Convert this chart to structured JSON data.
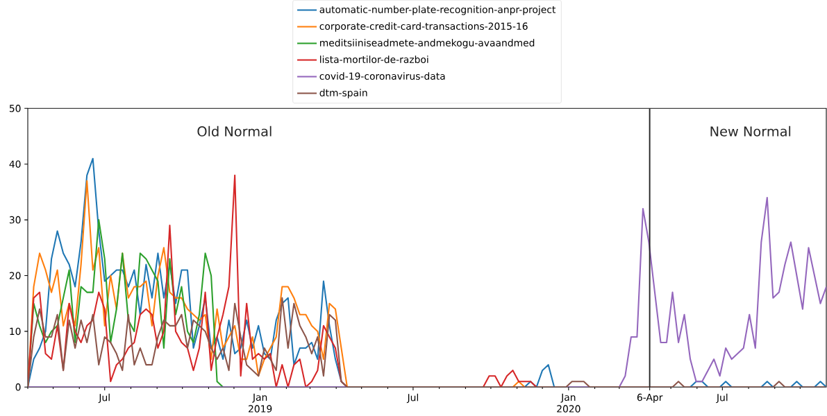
{
  "chart_data": {
    "type": "line",
    "x": [
      "2018-04-01",
      "2018-04-08",
      "2018-04-15",
      "2018-04-22",
      "2018-04-29",
      "2018-05-06",
      "2018-05-13",
      "2018-05-20",
      "2018-05-27",
      "2018-06-03",
      "2018-06-10",
      "2018-06-17",
      "2018-06-24",
      "2018-07-01",
      "2018-07-08",
      "2018-07-15",
      "2018-07-22",
      "2018-07-29",
      "2018-08-05",
      "2018-08-12",
      "2018-08-19",
      "2018-08-26",
      "2018-09-02",
      "2018-09-09",
      "2018-09-16",
      "2018-09-23",
      "2018-09-30",
      "2018-10-07",
      "2018-10-14",
      "2018-10-21",
      "2018-10-28",
      "2018-11-04",
      "2018-11-11",
      "2018-11-18",
      "2018-11-25",
      "2018-12-02",
      "2018-12-09",
      "2018-12-16",
      "2018-12-23",
      "2018-12-30",
      "2019-01-06",
      "2019-01-13",
      "2019-01-20",
      "2019-01-27",
      "2019-02-03",
      "2019-02-10",
      "2019-02-17",
      "2019-02-24",
      "2019-03-03",
      "2019-03-10",
      "2019-03-17",
      "2019-03-24",
      "2019-03-31",
      "2019-04-07",
      "2019-04-14",
      "2019-04-21",
      "2019-04-28",
      "2019-05-05",
      "2019-05-12",
      "2019-05-19",
      "2019-05-26",
      "2019-06-02",
      "2019-06-09",
      "2019-06-16",
      "2019-06-23",
      "2019-06-30",
      "2019-07-07",
      "2019-07-14",
      "2019-07-21",
      "2019-07-28",
      "2019-08-04",
      "2019-08-11",
      "2019-08-18",
      "2019-08-25",
      "2019-09-01",
      "2019-09-08",
      "2019-09-15",
      "2019-09-22",
      "2019-09-29",
      "2019-10-06",
      "2019-10-13",
      "2019-10-20",
      "2019-10-27",
      "2019-11-03",
      "2019-11-10",
      "2019-11-17",
      "2019-11-24",
      "2019-12-01",
      "2019-12-08",
      "2019-12-15",
      "2019-12-22",
      "2019-12-29",
      "2020-01-05",
      "2020-01-12",
      "2020-01-19",
      "2020-01-26",
      "2020-02-02",
      "2020-02-09",
      "2020-02-16",
      "2020-02-23",
      "2020-03-01",
      "2020-03-08",
      "2020-03-15",
      "2020-03-22",
      "2020-03-29",
      "2020-04-05",
      "2020-04-12",
      "2020-04-19",
      "2020-04-26",
      "2020-05-03",
      "2020-05-10",
      "2020-05-17",
      "2020-05-24",
      "2020-05-31",
      "2020-06-07",
      "2020-06-14",
      "2020-06-21",
      "2020-06-28",
      "2020-07-05",
      "2020-07-12",
      "2020-07-19",
      "2020-07-26",
      "2020-08-02",
      "2020-08-09",
      "2020-08-16",
      "2020-08-23",
      "2020-08-30",
      "2020-09-06",
      "2020-09-13",
      "2020-09-20",
      "2020-09-27",
      "2020-10-04",
      "2020-10-11",
      "2020-10-18",
      "2020-10-25",
      "2020-11-01"
    ],
    "series": [
      {
        "name": "automatic-number-plate-recognition-anpr-project",
        "color": "#1f77b4",
        "values": [
          0,
          5,
          7,
          10,
          23,
          28,
          24,
          22,
          18,
          26,
          38,
          41,
          28,
          19,
          20,
          21,
          21,
          18,
          21,
          13,
          22,
          16,
          24,
          16,
          22,
          15,
          21,
          21,
          7,
          11,
          16,
          7,
          9,
          5,
          12,
          6,
          7,
          12,
          7,
          11,
          6,
          5,
          12,
          15,
          16,
          4,
          7,
          7,
          8,
          5,
          19,
          11,
          5,
          1,
          0,
          null,
          null,
          null,
          null,
          null,
          null,
          null,
          null,
          null,
          null,
          null,
          null,
          null,
          null,
          null,
          null,
          null,
          null,
          null,
          null,
          null,
          null,
          null,
          null,
          null,
          null,
          null,
          null,
          null,
          0,
          1,
          0,
          3,
          4,
          0,
          null,
          null,
          null,
          null,
          null,
          null,
          null,
          null,
          null,
          null,
          null,
          null,
          null,
          null,
          null,
          null,
          null,
          null,
          null,
          null,
          null,
          null,
          0,
          1,
          1,
          0,
          null,
          0,
          1,
          0,
          null,
          null,
          null,
          null,
          0,
          1,
          0,
          null,
          null,
          0,
          1,
          0,
          null,
          0,
          1,
          0
        ]
      },
      {
        "name": "corporate-credit-card-transactions-2015-16",
        "color": "#ff7f0e",
        "values": [
          0,
          18,
          24,
          21,
          17,
          21,
          11,
          15,
          11,
          22,
          37,
          21,
          25,
          11,
          20,
          14,
          24,
          16,
          18,
          18,
          19,
          11,
          20,
          25,
          17,
          16,
          16,
          14,
          13,
          12,
          13,
          5,
          14,
          7,
          9,
          11,
          5,
          5,
          9,
          2,
          5,
          7,
          9,
          18,
          18,
          16,
          13,
          13,
          11,
          10,
          5,
          15,
          14,
          7,
          0,
          null,
          null,
          null,
          null,
          null,
          null,
          null,
          null,
          null,
          null,
          null,
          null,
          null,
          null,
          null,
          null,
          null,
          null,
          null,
          null,
          null,
          null,
          null,
          null,
          null,
          null,
          null,
          0,
          1,
          0,
          null,
          null,
          null,
          null,
          null,
          null,
          null,
          null,
          null,
          null,
          null,
          null,
          null,
          null,
          null,
          null,
          null,
          null,
          null,
          null,
          null,
          null,
          null,
          null,
          null,
          null,
          null,
          null,
          null,
          null,
          null,
          null,
          null,
          null,
          null,
          null,
          null,
          null,
          null,
          null,
          null,
          null,
          null,
          null,
          null,
          null,
          null,
          null,
          null,
          null,
          null
        ]
      },
      {
        "name": "meditsiiniseadmete-andmekogu-avaandmed",
        "color": "#2ca02c",
        "values": [
          0,
          15,
          11,
          8,
          10,
          11,
          16,
          21,
          8,
          18,
          17,
          17,
          30,
          23,
          8,
          14,
          24,
          12,
          10,
          24,
          23,
          21,
          19,
          7,
          23,
          13,
          18,
          10,
          8,
          13,
          24,
          20,
          1,
          0,
          null,
          null,
          null,
          null,
          null,
          null,
          null,
          null,
          null,
          null,
          null,
          null,
          null,
          null,
          null,
          null,
          null,
          null,
          null,
          null,
          null,
          null,
          null,
          null,
          null,
          null,
          null,
          null,
          null,
          null,
          null,
          null,
          null,
          null,
          null,
          null,
          null,
          null,
          null,
          null,
          null,
          null,
          null,
          null,
          null,
          null,
          null,
          null,
          null,
          null,
          null,
          null,
          null,
          null,
          null,
          null,
          null,
          null,
          null,
          null,
          null,
          null,
          null,
          null,
          null,
          null,
          null,
          null,
          null,
          null,
          null,
          null,
          null,
          null,
          null,
          null,
          null,
          null,
          null,
          null,
          null,
          null,
          null,
          null,
          null,
          null,
          null,
          null,
          null,
          null,
          null,
          null,
          null,
          null,
          null,
          null,
          null,
          null,
          null,
          null,
          null,
          null
        ]
      },
      {
        "name": "lista-mortilor-de-razboi",
        "color": "#d62728",
        "values": [
          0,
          16,
          17,
          6,
          5,
          11,
          3,
          15,
          10,
          8,
          11,
          12,
          17,
          14,
          1,
          4,
          5,
          7,
          8,
          13,
          14,
          13,
          7,
          10,
          29,
          10,
          8,
          7,
          3,
          7,
          17,
          3,
          9,
          13,
          18,
          38,
          2,
          15,
          5,
          6,
          5,
          6,
          0,
          4,
          0,
          4,
          5,
          0,
          1,
          3,
          11,
          9,
          7,
          1,
          0,
          null,
          null,
          null,
          null,
          null,
          null,
          null,
          null,
          null,
          null,
          null,
          null,
          null,
          null,
          null,
          null,
          null,
          null,
          null,
          null,
          null,
          null,
          0,
          2,
          2,
          0,
          2,
          3,
          1,
          1,
          1,
          0,
          null,
          null,
          null,
          null,
          null,
          null,
          null,
          null,
          null,
          null,
          null,
          null,
          null,
          null,
          null,
          null,
          null,
          null,
          null,
          null,
          null,
          null,
          null,
          null,
          null,
          null,
          null,
          null,
          null,
          null,
          null,
          null,
          null,
          null,
          null,
          null,
          null,
          null,
          null,
          null,
          null,
          null,
          null,
          null,
          null,
          null,
          null,
          null,
          null
        ]
      },
      {
        "name": "covid-19-coronavirus-data",
        "color": "#9467bd",
        "values": [
          0,
          0,
          0,
          0,
          0,
          0,
          0,
          0,
          0,
          0,
          0,
          0,
          0,
          0,
          0,
          0,
          0,
          0,
          0,
          0,
          0,
          0,
          0,
          0,
          0,
          0,
          0,
          0,
          0,
          0,
          0,
          0,
          0,
          0,
          0,
          0,
          0,
          0,
          0,
          0,
          0,
          0,
          0,
          0,
          0,
          0,
          0,
          0,
          0,
          0,
          0,
          0,
          0,
          0,
          0,
          null,
          null,
          null,
          null,
          null,
          null,
          null,
          null,
          null,
          null,
          null,
          null,
          null,
          null,
          null,
          null,
          null,
          null,
          null,
          null,
          null,
          null,
          null,
          null,
          null,
          null,
          null,
          null,
          null,
          null,
          null,
          null,
          null,
          null,
          null,
          null,
          0,
          0,
          0,
          0,
          0,
          null,
          null,
          null,
          null,
          0,
          2,
          9,
          9,
          32,
          26,
          17,
          8,
          8,
          17,
          8,
          13,
          5,
          1,
          1,
          3,
          5,
          2,
          7,
          5,
          6,
          7,
          13,
          7,
          26,
          34,
          16,
          17,
          22,
          26,
          20,
          14,
          25,
          20,
          15,
          18
        ]
      },
      {
        "name": "dtm-spain",
        "color": "#8c564b",
        "values": [
          0,
          9,
          14,
          9,
          9,
          13,
          3,
          12,
          7,
          12,
          8,
          13,
          4,
          9,
          8,
          6,
          3,
          13,
          4,
          7,
          4,
          4,
          9,
          12,
          11,
          11,
          13,
          7,
          12,
          11,
          10,
          7,
          5,
          7,
          3,
          15,
          9,
          4,
          3,
          2,
          7,
          5,
          3,
          16,
          7,
          15,
          11,
          9,
          6,
          9,
          2,
          13,
          12,
          1,
          0,
          0,
          0,
          0,
          0,
          0,
          0,
          0,
          0,
          0,
          0,
          0,
          0,
          0,
          0,
          0,
          0,
          0,
          0,
          0,
          0,
          0,
          0,
          0,
          0,
          0,
          0,
          0,
          0,
          0,
          0,
          0,
          0,
          0,
          0,
          0,
          0,
          0,
          1,
          1,
          1,
          0,
          0,
          0,
          0,
          0,
          0,
          0,
          0,
          0,
          0,
          0,
          0,
          0,
          0,
          0,
          1,
          0,
          0,
          0,
          0,
          0,
          0,
          0,
          0,
          0,
          0,
          0,
          0,
          0,
          0,
          0,
          0,
          1,
          0,
          0,
          0,
          0,
          0,
          0,
          0,
          0
        ]
      }
    ],
    "xlim": [
      "2018-04-01",
      "2020-11-01"
    ],
    "xticks": [
      {
        "value": "2018-04-01",
        "label": null
      },
      {
        "value": "2018-05-01",
        "label": null
      },
      {
        "value": "2018-06-01",
        "label": null
      },
      {
        "value": "2018-07-01",
        "label": "Jul"
      },
      {
        "value": "2018-08-01",
        "label": null
      },
      {
        "value": "2018-09-01",
        "label": null
      },
      {
        "value": "2018-10-01",
        "label": null
      },
      {
        "value": "2018-11-01",
        "label": null
      },
      {
        "value": "2018-12-01",
        "label": null
      },
      {
        "value": "2019-01-01",
        "label": "Jan 2019"
      },
      {
        "value": "2019-02-01",
        "label": null
      },
      {
        "value": "2019-03-01",
        "label": null
      },
      {
        "value": "2019-04-01",
        "label": null
      },
      {
        "value": "2019-05-01",
        "label": null
      },
      {
        "value": "2019-06-01",
        "label": null
      },
      {
        "value": "2019-07-01",
        "label": "Jul"
      },
      {
        "value": "2019-08-01",
        "label": null
      },
      {
        "value": "2019-09-01",
        "label": null
      },
      {
        "value": "2019-10-01",
        "label": null
      },
      {
        "value": "2019-11-01",
        "label": null
      },
      {
        "value": "2019-12-01",
        "label": null
      },
      {
        "value": "2020-01-01",
        "label": "Jan 2020"
      },
      {
        "value": "2020-02-01",
        "label": null
      },
      {
        "value": "2020-03-01",
        "label": null
      },
      {
        "value": "2020-04-06",
        "label": "6-Apr"
      },
      {
        "value": "2020-05-01",
        "label": null
      },
      {
        "value": "2020-06-01",
        "label": null
      },
      {
        "value": "2020-07-01",
        "label": "Jul"
      },
      {
        "value": "2020-08-01",
        "label": null
      },
      {
        "value": "2020-09-01",
        "label": null
      },
      {
        "value": "2020-10-01",
        "label": null
      }
    ],
    "ylim": [
      0,
      50
    ],
    "yticks": [
      0,
      10,
      20,
      30,
      40,
      50
    ],
    "ref_lines": [
      {
        "axis": "x",
        "value": "2020-04-06",
        "color": "#262626"
      }
    ],
    "annotations": [
      "Old Normal",
      "New Normal"
    ],
    "legend": "top"
  }
}
